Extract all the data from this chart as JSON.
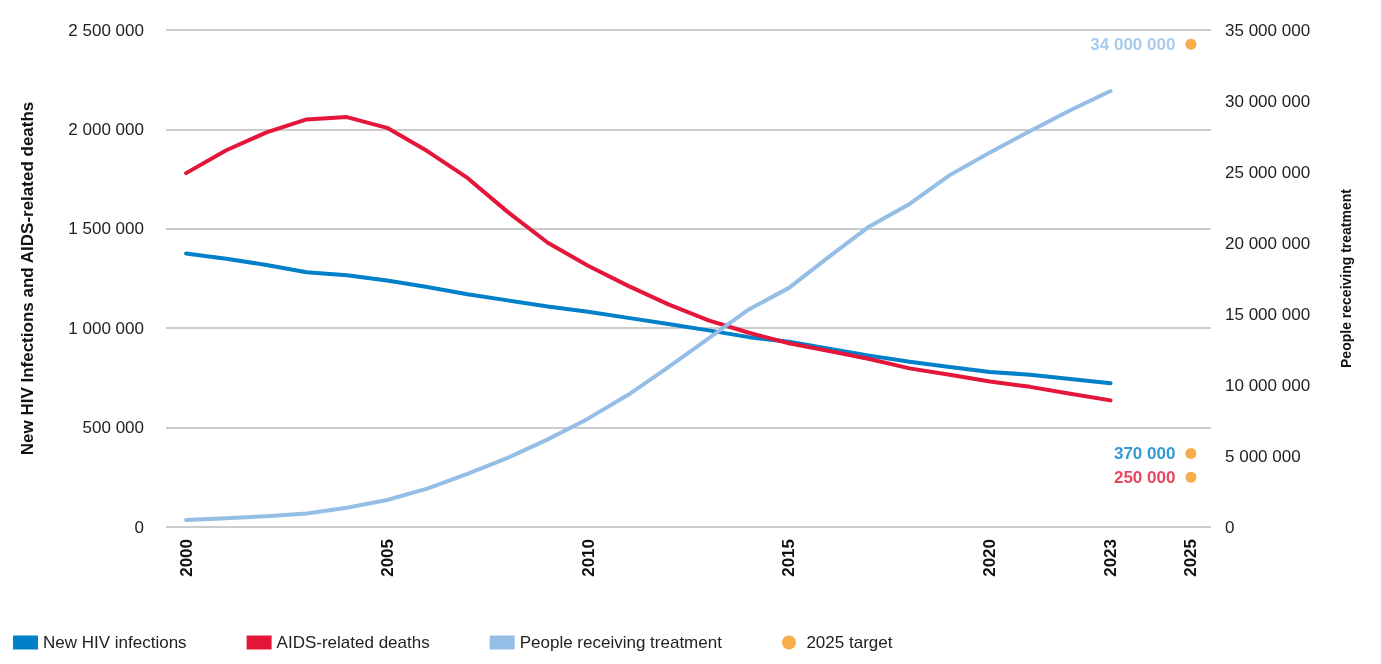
{
  "chart_data": {
    "type": "line",
    "categories": [
      "2000",
      null,
      null,
      null,
      null,
      "2005",
      null,
      null,
      null,
      null,
      "2010",
      null,
      null,
      null,
      null,
      "2015",
      null,
      null,
      null,
      null,
      "2020",
      null,
      null,
      "2023",
      null,
      "2025"
    ],
    "series": [
      {
        "name": "New HIV infections",
        "color": "#0080c9",
        "marker": "none",
        "values": [
          1376000,
          1349000,
          1318000,
          1281000,
          1266000,
          1240000,
          1207000,
          1171000,
          1140000,
          1109000,
          1083000,
          1052000,
          1021000,
          989000,
          955000,
          932000,
          897000,
          862000,
          831000,
          805000,
          780000,
          766000,
          744000,
          723000,
          null,
          null
        ]
      },
      {
        "name": "AIDS-related deaths",
        "color": "#e4163a",
        "marker": "none",
        "values": [
          1780000,
          1895000,
          1985000,
          2050000,
          2062000,
          2008000,
          1891000,
          1756000,
          1585000,
          1430000,
          1314000,
          1213000,
          1120000,
          1039000,
          977000,
          924000,
          885000,
          845000,
          798000,
          766000,
          732000,
          705000,
          670000,
          637000,
          null,
          null
        ]
      },
      {
        "name": "People receiving treatment",
        "color": "#94bee6",
        "axis": "y2",
        "marker": "none",
        "values": [
          500000,
          620000,
          760000,
          950000,
          1350000,
          1900000,
          2700000,
          3740000,
          4870000,
          6170000,
          7630000,
          9310000,
          11260000,
          13290000,
          15320000,
          16840000,
          19040000,
          21170000,
          22750000,
          24780000,
          26370000,
          27890000,
          29350000,
          30700000,
          null,
          null
        ]
      },
      {
        "name": "2025 target",
        "type": "scatter",
        "marker": "circle",
        "color": "#f39a1e",
        "values": [
          null,
          null,
          null,
          null,
          null,
          null,
          null,
          null,
          null,
          null,
          null,
          null,
          null,
          null,
          null,
          null,
          null,
          null,
          null,
          null,
          null,
          null,
          null,
          null,
          null,
          370000
        ],
        "value_labels": [
          null,
          null,
          null,
          null,
          null,
          null,
          null,
          null,
          null,
          null,
          null,
          null,
          null,
          null,
          null,
          null,
          null,
          null,
          null,
          null,
          null,
          null,
          null,
          null,
          null,
          "370 000"
        ]
      },
      {
        "type": "scatter",
        "marker": "circle",
        "color": "#f39a1e",
        "values": [
          null,
          null,
          null,
          null,
          null,
          null,
          null,
          null,
          null,
          null,
          null,
          null,
          null,
          null,
          null,
          null,
          null,
          null,
          null,
          null,
          null,
          null,
          null,
          null,
          null,
          250000
        ],
        "value_labels": [
          null,
          null,
          null,
          null,
          null,
          null,
          null,
          null,
          null,
          null,
          null,
          null,
          null,
          null,
          null,
          null,
          null,
          null,
          null,
          null,
          null,
          null,
          null,
          null,
          null,
          "250 000"
        ]
      },
      {
        "type": "scatter",
        "marker": "circle",
        "color": "#f39a1e",
        "axis": "y2",
        "values": [
          null,
          null,
          null,
          null,
          null,
          null,
          null,
          null,
          null,
          null,
          null,
          null,
          null,
          null,
          null,
          null,
          null,
          null,
          null,
          null,
          null,
          null,
          null,
          null,
          null,
          34000000
        ],
        "value_labels": [
          null,
          null,
          null,
          null,
          null,
          null,
          null,
          null,
          null,
          null,
          null,
          null,
          null,
          null,
          null,
          null,
          null,
          null,
          null,
          null,
          null,
          null,
          null,
          null,
          null,
          "34 000 000"
        ]
      }
    ],
    "ylabel": "New HIV Infections and AIDS-related deaths",
    "y2label": "People receiving treatment",
    "ylim": [
      0,
      2500000
    ],
    "yticks": [
      {
        "value": 0,
        "label": "0"
      },
      {
        "value": 500000,
        "label": "500 000"
      },
      {
        "value": 1000000,
        "label": "1 000 000"
      },
      {
        "value": 1500000,
        "label": "1 500 000"
      },
      {
        "value": 2000000,
        "label": "2 000 000"
      },
      {
        "value": 2500000,
        "label": "2 500 000"
      }
    ],
    "y2lim": [
      0,
      35000000
    ],
    "y2ticks": [
      {
        "value": 0,
        "label": "0"
      },
      {
        "value": 5000000,
        "label": "5 000 000"
      },
      {
        "value": 10000000,
        "label": "10 000 000"
      },
      {
        "value": 15000000,
        "label": "15 000 000"
      },
      {
        "value": 20000000,
        "label": "20 000 000"
      },
      {
        "value": 25000000,
        "label": "25 000 000"
      },
      {
        "value": 30000000,
        "label": "30 000 000"
      },
      {
        "value": 35000000,
        "label": "35 000 000"
      }
    ],
    "grid": "y",
    "legend": "bottom left",
    "line_style": "solid"
  }
}
